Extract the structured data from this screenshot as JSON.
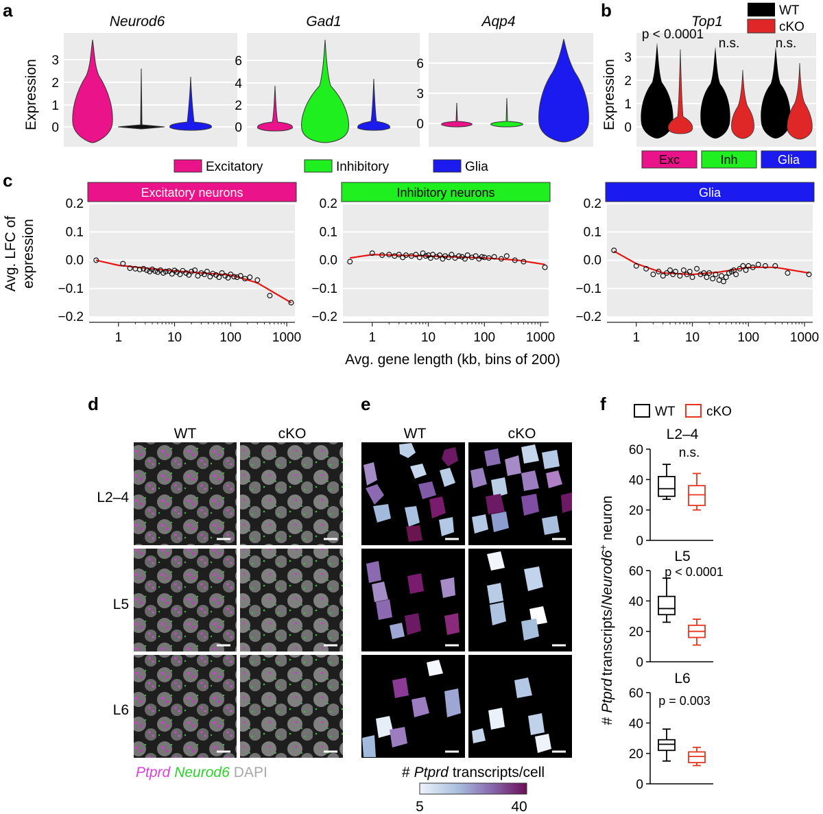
{
  "panel_labels": {
    "a": "a",
    "b": "b",
    "c": "c",
    "d": "d",
    "e": "e",
    "f": "f"
  },
  "panel_a": {
    "ylabel": "Expression",
    "genes": [
      "Neurod6",
      "Gad1",
      "Aqp4"
    ],
    "yticks": [
      [
        "0",
        "1",
        "2",
        "3"
      ],
      [
        "0",
        "2",
        "4",
        "6"
      ],
      [
        "0",
        "3",
        "6"
      ]
    ],
    "legend": [
      "Excitatory",
      "Inhibitory",
      "Glia"
    ]
  },
  "panel_b": {
    "gene": "Top1",
    "ylabel": "Expression",
    "yticks": [
      "0",
      "1",
      "2",
      "3"
    ],
    "stats": [
      "p < 0.0001",
      "n.s.",
      "n.s."
    ],
    "legend": [
      "WT",
      "cKO"
    ],
    "groups": [
      "Exc",
      "Inh",
      "Glia"
    ]
  },
  "panel_c": {
    "strips": [
      "Excitatory neurons",
      "Inhibitory neurons",
      "Glia"
    ],
    "ylabel_1": "Avg. LFC of",
    "ylabel_2": "expression",
    "xlabel": "Avg. gene length (kb, bins of 200)",
    "yticks": [
      "0.2",
      "0.1",
      "0.0",
      "−0.1",
      "−0.2"
    ],
    "xticks": [
      "1",
      "10",
      "100",
      "1000"
    ]
  },
  "panel_d": {
    "cols": [
      "WT",
      "cKO"
    ],
    "rows": [
      "L2–4",
      "L5",
      "L6"
    ],
    "legend_ptprd": "Ptprd",
    "legend_neurod6": "Neurod6",
    "legend_dapi": "DAPI"
  },
  "panel_e": {
    "cols": [
      "WT",
      "cKO"
    ],
    "colorbar_label_prefix": "#",
    "colorbar_label_gene": "Ptprd",
    "colorbar_label_suffix": "transcripts/cell",
    "colorbar_min": "5",
    "colorbar_max": "40"
  },
  "panel_f": {
    "legend": [
      "WT",
      "cKO"
    ],
    "ylabel_prefix": "#",
    "ylabel_gene1": "Ptprd",
    "ylabel_mid": "transcripts/",
    "ylabel_gene2": "Neurod6",
    "ylabel_sup": "+",
    "ylabel_suffix": "neuron",
    "yticks": [
      "0",
      "20",
      "40",
      "60"
    ],
    "plots": [
      {
        "title": "L2–4",
        "stat": "n.s."
      },
      {
        "title": "L5",
        "stat": "p < 0.0001"
      },
      {
        "title": "L6",
        "stat": "p = 0.003"
      }
    ]
  },
  "chart_data": [
    {
      "type": "line",
      "panel": "c",
      "title": "Excitatory neurons",
      "xlabel": "Avg. gene length (kb, bins of 200)",
      "ylabel": "Avg. LFC of expression",
      "xscale": "log",
      "xlim": [
        0.3,
        1400
      ],
      "ylim": [
        -0.2,
        0.2
      ],
      "trend": {
        "x": [
          0.4,
          1,
          10,
          100,
          300,
          1200
        ],
        "y": [
          0.0,
          -0.018,
          -0.038,
          -0.052,
          -0.08,
          -0.15
        ]
      },
      "points_x": [
        0.4,
        1.2,
        1.6,
        2,
        2.4,
        2.8,
        3.2,
        3.6,
        4,
        4.5,
        5,
        5.6,
        6.3,
        7,
        8,
        9,
        10,
        11,
        12.5,
        14,
        16,
        18,
        20,
        23,
        26,
        30,
        34,
        38,
        43,
        48,
        55,
        62,
        70,
        80,
        90,
        100,
        115,
        130,
        150,
        180,
        220,
        300,
        500,
        1200
      ],
      "points_y": [
        0.0,
        -0.012,
        -0.028,
        -0.03,
        -0.033,
        -0.03,
        -0.035,
        -0.04,
        -0.032,
        -0.038,
        -0.042,
        -0.035,
        -0.045,
        -0.04,
        -0.038,
        -0.048,
        -0.036,
        -0.042,
        -0.05,
        -0.037,
        -0.045,
        -0.052,
        -0.04,
        -0.035,
        -0.055,
        -0.045,
        -0.05,
        -0.04,
        -0.058,
        -0.047,
        -0.052,
        -0.06,
        -0.045,
        -0.055,
        -0.062,
        -0.05,
        -0.058,
        -0.06,
        -0.055,
        -0.065,
        -0.06,
        -0.07,
        -0.125,
        -0.15
      ]
    },
    {
      "type": "line",
      "panel": "c",
      "title": "Inhibitory neurons",
      "xscale": "log",
      "xlim": [
        0.3,
        1400
      ],
      "ylim": [
        -0.2,
        0.2
      ],
      "trend": {
        "x": [
          0.4,
          1,
          10,
          100,
          400,
          1200
        ],
        "y": [
          0.008,
          0.02,
          0.015,
          0.008,
          0.0,
          -0.015
        ]
      },
      "points_x": [
        0.4,
        1,
        1.5,
        2,
        2.5,
        3,
        3.5,
        4,
        5,
        6,
        7,
        8,
        9,
        10,
        11,
        12,
        14,
        16,
        18,
        20,
        23,
        26,
        30,
        35,
        40,
        45,
        50,
        60,
        70,
        80,
        90,
        100,
        120,
        150,
        200,
        250,
        350,
        500,
        1200
      ],
      "points_y": [
        -0.005,
        0.025,
        0.018,
        0.02,
        0.015,
        0.02,
        0.01,
        0.018,
        0.015,
        0.02,
        0.01,
        0.025,
        0.015,
        0.018,
        0.008,
        0.02,
        0.012,
        0.018,
        0.005,
        0.015,
        0.01,
        0.02,
        0.008,
        0.015,
        0.012,
        0.005,
        0.018,
        0.01,
        0.015,
        0.005,
        0.012,
        0.01,
        0.008,
        0.012,
        0.005,
        0.015,
        0.0,
        -0.005,
        -0.025
      ]
    },
    {
      "type": "line",
      "panel": "c",
      "title": "Glia",
      "xscale": "log",
      "xlim": [
        0.3,
        1400
      ],
      "ylim": [
        -0.2,
        0.2
      ],
      "trend": {
        "x": [
          0.4,
          1,
          3,
          10,
          30,
          100,
          300,
          1200
        ],
        "y": [
          0.032,
          -0.012,
          -0.045,
          -0.05,
          -0.042,
          -0.025,
          -0.025,
          -0.045
        ]
      },
      "points_x": [
        0.4,
        1,
        1.5,
        2,
        2.5,
        3,
        3.5,
        4,
        4.5,
        5,
        6,
        7,
        8,
        9,
        10,
        12,
        14,
        16,
        18,
        20,
        23,
        26,
        30,
        33,
        36,
        40,
        45,
        50,
        55,
        60,
        70,
        80,
        90,
        100,
        120,
        150,
        200,
        300,
        500,
        1200
      ],
      "points_y": [
        0.035,
        -0.02,
        -0.03,
        -0.05,
        -0.04,
        -0.055,
        -0.045,
        -0.035,
        -0.05,
        -0.04,
        -0.055,
        -0.035,
        -0.05,
        -0.04,
        -0.06,
        -0.03,
        -0.05,
        -0.045,
        -0.06,
        -0.045,
        -0.065,
        -0.05,
        -0.07,
        -0.055,
        -0.075,
        -0.06,
        -0.045,
        -0.04,
        -0.035,
        -0.05,
        -0.03,
        -0.02,
        -0.035,
        -0.02,
        -0.025,
        -0.015,
        -0.02,
        -0.02,
        -0.045,
        -0.05
      ]
    },
    {
      "type": "box",
      "panel": "f",
      "title": "L2–4",
      "ylim": [
        0,
        60
      ],
      "series": [
        {
          "name": "WT",
          "whisker_low": 27,
          "q1": 29,
          "median": 34,
          "q3": 42,
          "whisker_high": 50
        },
        {
          "name": "cKO",
          "whisker_low": 20,
          "q1": 23,
          "median": 30,
          "q3": 36,
          "whisker_high": 44
        }
      ]
    },
    {
      "type": "box",
      "panel": "f",
      "title": "L5",
      "ylim": [
        0,
        60
      ],
      "series": [
        {
          "name": "WT",
          "whisker_low": 26,
          "q1": 31,
          "median": 35,
          "q3": 43,
          "whisker_high": 55
        },
        {
          "name": "cKO",
          "whisker_low": 11,
          "q1": 16,
          "median": 20,
          "q3": 24,
          "whisker_high": 28
        }
      ]
    },
    {
      "type": "box",
      "panel": "f",
      "title": "L6",
      "ylim": [
        0,
        60
      ],
      "series": [
        {
          "name": "WT",
          "whisker_low": 15,
          "q1": 22,
          "median": 26,
          "q3": 29,
          "whisker_high": 36
        },
        {
          "name": "cKO",
          "whisker_low": 12,
          "q1": 14,
          "median": 18,
          "q3": 21,
          "whisker_high": 24
        }
      ]
    }
  ]
}
